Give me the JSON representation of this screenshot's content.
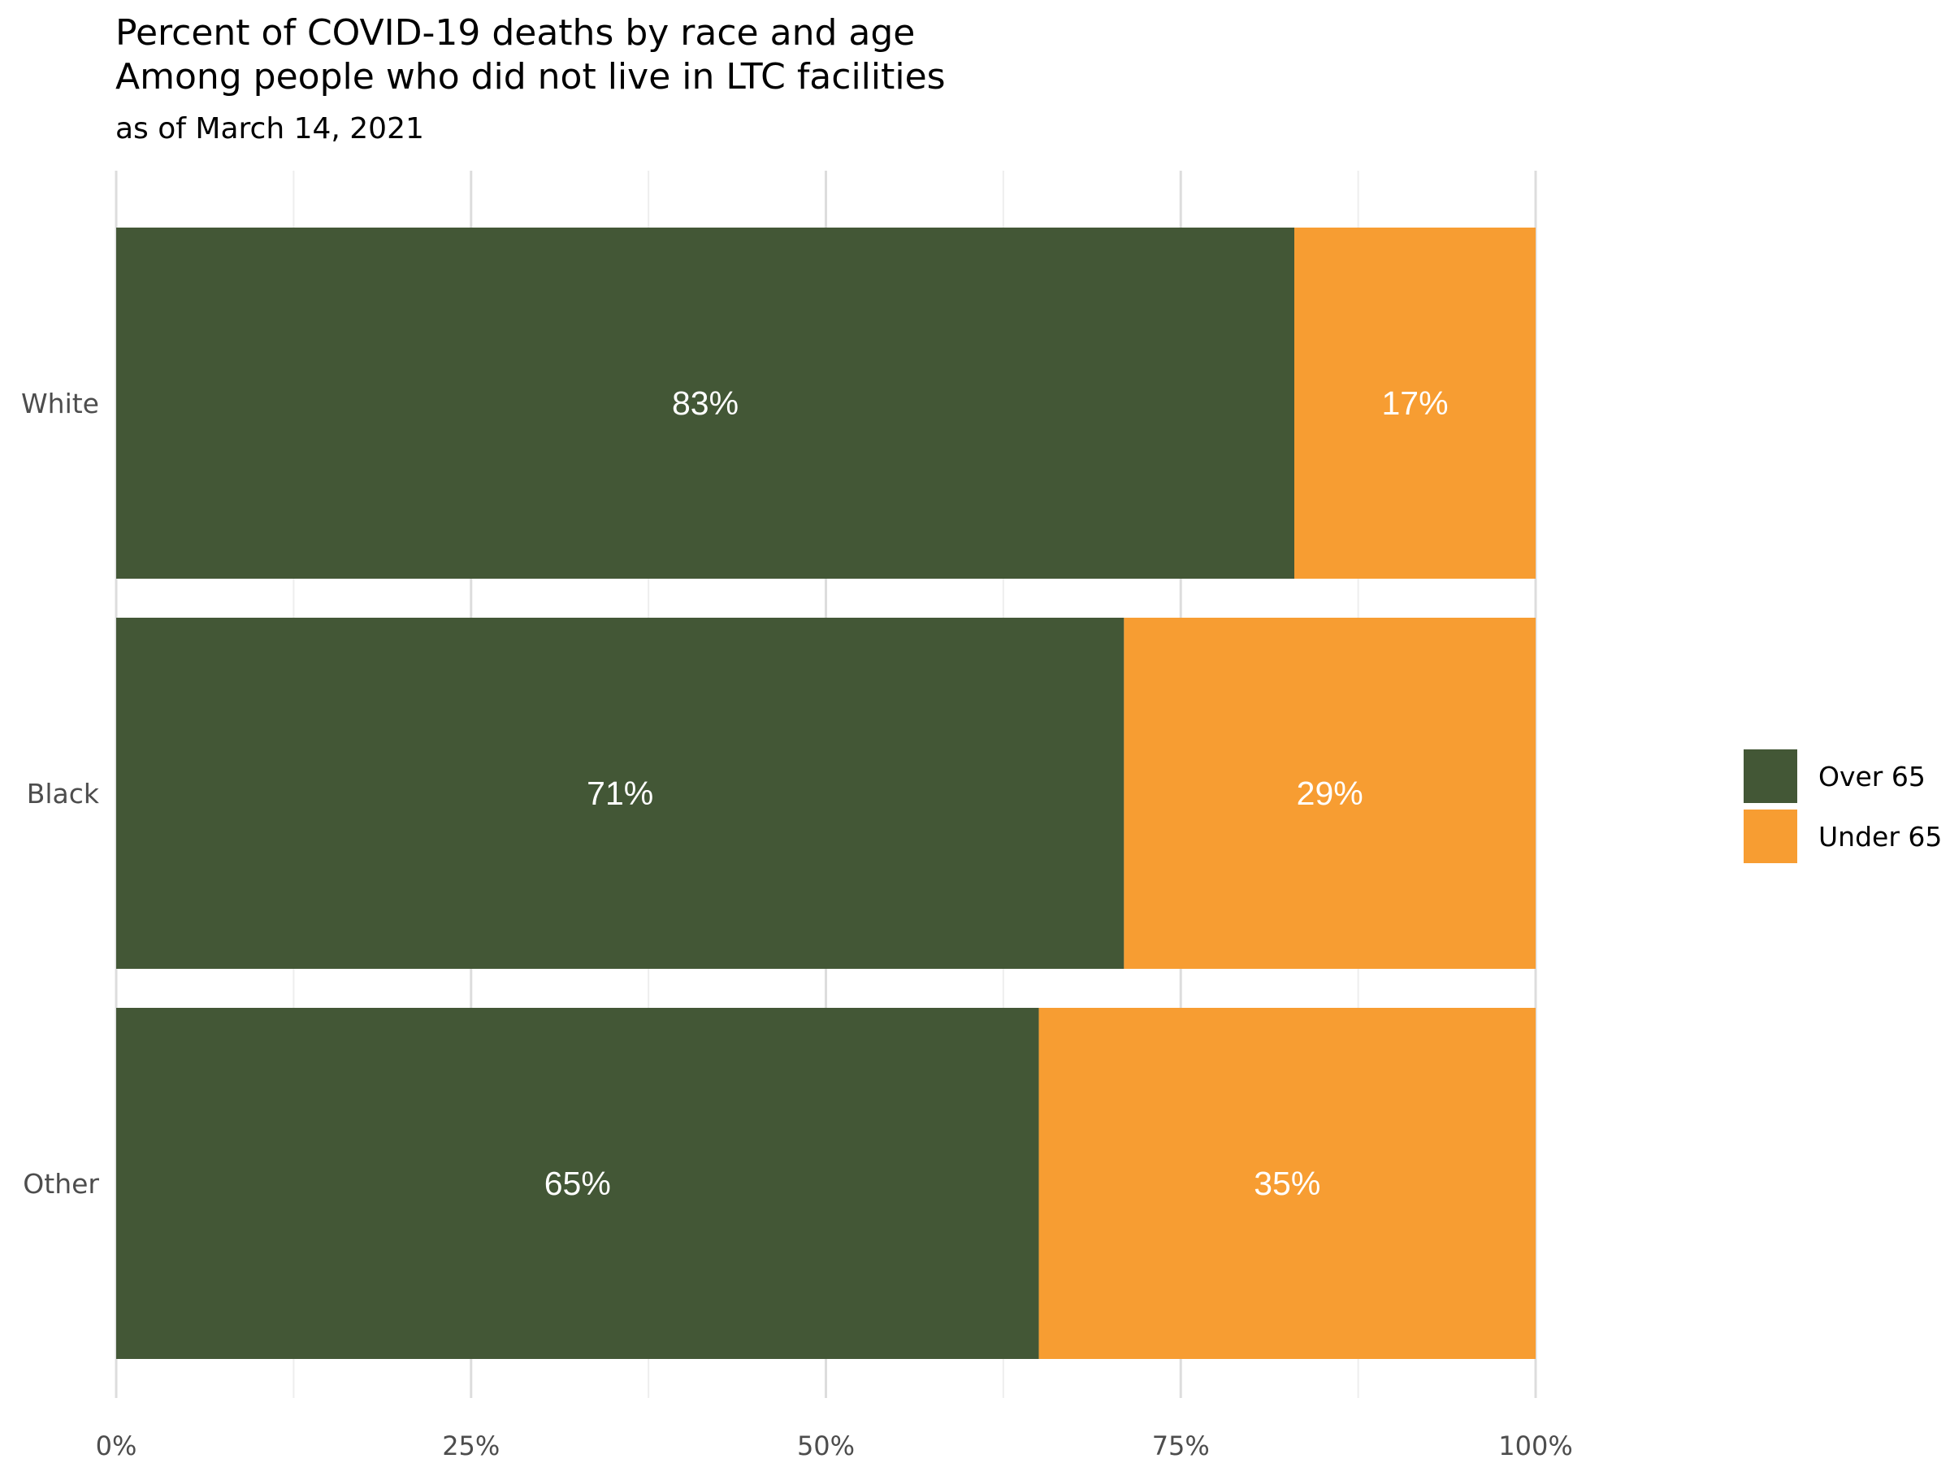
{
  "chart_data": {
    "type": "bar",
    "orientation": "horizontal",
    "stacked": true,
    "title": "Percent of COVID-19 deaths by race and age",
    "title_line2": "Among people who did not live in LTC facilities",
    "subtitle": "as of March 14, 2021",
    "categories": [
      "White",
      "Black",
      "Other"
    ],
    "series": [
      {
        "name": "Over 65",
        "color": "#435736",
        "values": [
          83,
          71,
          65
        ],
        "labels": [
          "83%",
          "71%",
          "65%"
        ]
      },
      {
        "name": "Under 65",
        "color": "#F79D32",
        "values": [
          17,
          29,
          35
        ],
        "labels": [
          "17%",
          "29%",
          "35%"
        ]
      }
    ],
    "xlim": [
      0,
      100
    ],
    "x_ticks": [
      0,
      25,
      50,
      75,
      100
    ],
    "x_tick_labels": [
      "0%",
      "25%",
      "50%",
      "75%",
      "100%"
    ],
    "xlabel": "",
    "ylabel": "",
    "grid": "vertical",
    "legend": {
      "position": "right",
      "entries": [
        "Over 65",
        "Under 65"
      ]
    }
  }
}
